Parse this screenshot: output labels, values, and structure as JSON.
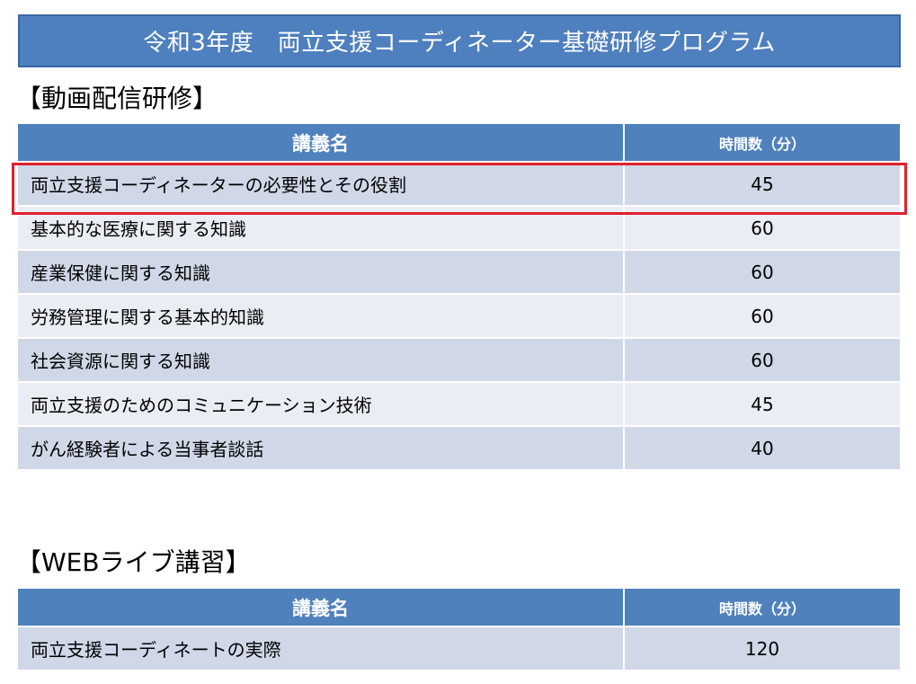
{
  "title": "令和3年度　両立支援コーディネーター基礎研修プログラム",
  "video_section": {
    "heading": "【動画配信研修】",
    "header": {
      "name": "講義名",
      "time": "時間数（分）"
    },
    "rows": [
      {
        "name": "両立支援コーディネーターの必要性とその役割",
        "time": "45",
        "highlighted": true
      },
      {
        "name": "基本的な医療に関する知識",
        "time": "60"
      },
      {
        "name": "産業保健に関する知識",
        "time": "60"
      },
      {
        "name": "労務管理に関する基本的知識",
        "time": "60"
      },
      {
        "name": "社会資源に関する知識",
        "time": "60"
      },
      {
        "name": "両立支援のためのコミュニケーション技術",
        "time": "45"
      },
      {
        "name": "がん経験者による当事者談話",
        "time": "40"
      }
    ]
  },
  "web_section": {
    "heading": "【WEBライブ講習】",
    "header": {
      "name": "講義名",
      "time": "時間数（分）"
    },
    "rows": [
      {
        "name": "両立支援コーディネートの実際",
        "time": "120"
      }
    ]
  },
  "colors": {
    "header_blue": "#4f81bd",
    "row_dark": "#d0d8e8",
    "row_light": "#e9edf4",
    "highlight_red": "#e0202e"
  }
}
